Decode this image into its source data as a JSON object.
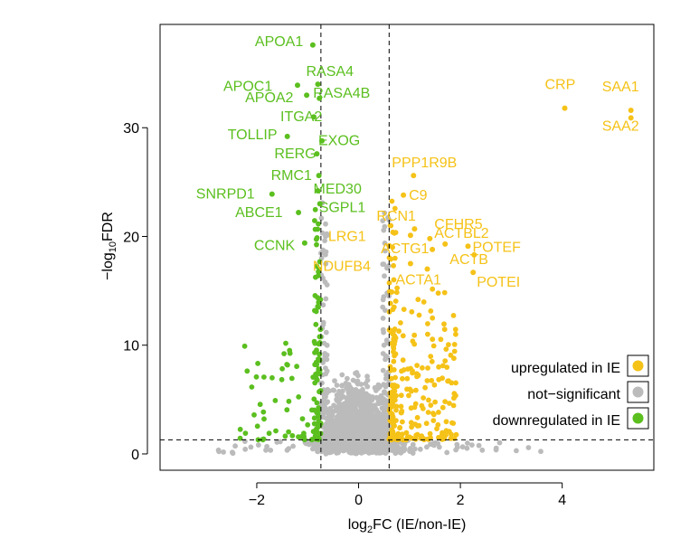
{
  "chart_data": {
    "type": "scatter",
    "title": "",
    "xlabel_main": "log",
    "xlabel_sub": "2",
    "xlabel_rest": "FC (IE/non-IE)",
    "ylabel_pre": "−log",
    "ylabel_sub": "10",
    "ylabel_rest": "FDR",
    "xlim": [
      -3.9,
      5.8
    ],
    "ylim": [
      -1.5,
      39.5
    ],
    "xticks": [
      -2,
      0,
      2,
      4
    ],
    "yticks": [
      0,
      10,
      20,
      30
    ],
    "xtick_labels": [
      "−2",
      "0",
      "2",
      "4"
    ],
    "ytick_labels": [
      "0",
      "10",
      "20",
      "30"
    ],
    "thresholds": {
      "logfc_low": -0.74,
      "logfc_high": 0.6,
      "neglog10fdr": 1.3
    },
    "colors": {
      "up": "#F5C218",
      "down": "#5BBF1F",
      "ns": "#BBBBBB",
      "line": "#000000"
    },
    "legend": [
      {
        "label": "upregulated in IE",
        "color": "#F5C218"
      },
      {
        "label": "not−significant",
        "color": "#BBBBBB"
      },
      {
        "label": "downregulated in IE",
        "color": "#5BBF1F"
      }
    ],
    "down_genes": [
      {
        "name": "APOA1",
        "x": -0.9,
        "y": 37.6
      },
      {
        "name": "APOC1",
        "x": -1.2,
        "y": 33.9
      },
      {
        "name": "RASA4",
        "x": -0.8,
        "y": 34.0
      },
      {
        "name": "APOA2",
        "x": -1.02,
        "y": 33.0
      },
      {
        "name": "RASA4B",
        "x": -0.77,
        "y": 32.7
      },
      {
        "name": "ITGA2",
        "x": -0.88,
        "y": 31.0
      },
      {
        "name": "TOLLIP",
        "x": -1.4,
        "y": 29.2
      },
      {
        "name": "EXOG",
        "x": -0.72,
        "y": 28.8
      },
      {
        "name": "RERG",
        "x": -0.82,
        "y": 27.6
      },
      {
        "name": "RMC1",
        "x": -0.78,
        "y": 25.6
      },
      {
        "name": "SNRPD1",
        "x": -1.7,
        "y": 23.9
      },
      {
        "name": "MED30",
        "x": -0.8,
        "y": 24.2
      },
      {
        "name": "SGPL1",
        "x": -0.76,
        "y": 23.0
      },
      {
        "name": "ABCE1",
        "x": -1.18,
        "y": 22.2
      },
      {
        "name": "CCNK",
        "x": -1.06,
        "y": 19.4
      }
    ],
    "up_genes": [
      {
        "name": "CRP",
        "x": 4.05,
        "y": 31.8
      },
      {
        "name": "SAA1",
        "x": 5.35,
        "y": 31.6
      },
      {
        "name": "SAA2",
        "x": 5.35,
        "y": 30.9
      },
      {
        "name": "PPP1R9B",
        "x": 1.08,
        "y": 25.6
      },
      {
        "name": "C9",
        "x": 0.88,
        "y": 23.8
      },
      {
        "name": "RCN1",
        "x": 1.1,
        "y": 20.7
      },
      {
        "name": "CFHR5",
        "x": 1.4,
        "y": 19.8
      },
      {
        "name": "LRG1",
        "x": 1.02,
        "y": 20.1
      },
      {
        "name": "ACTBL2",
        "x": 1.7,
        "y": 19.3
      },
      {
        "name": "ACTG1",
        "x": 1.45,
        "y": 18.8
      },
      {
        "name": "POTEF",
        "x": 2.15,
        "y": 19.1
      },
      {
        "name": "ACTB",
        "x": 2.27,
        "y": 18.3
      },
      {
        "name": "NDUFB4",
        "x": 1.02,
        "y": 17.5
      },
      {
        "name": "ACTA1",
        "x": 1.35,
        "y": 17.0
      },
      {
        "name": "POTEI",
        "x": 2.25,
        "y": 16.7
      }
    ]
  }
}
